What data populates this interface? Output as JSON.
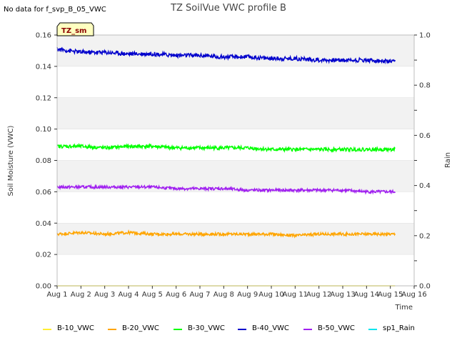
{
  "header": {
    "no_data_note": "No data for f_svp_B_05_VWC",
    "title": "TZ SoilVue VWC profile B"
  },
  "chart_data": {
    "type": "line",
    "title": "TZ SoilVue VWC profile B",
    "xlabel": "Time",
    "ylabel": "Soil Moisture (VWC)",
    "y2label": "Rain",
    "site_badge": "TZ_sm",
    "ylim": [
      0.0,
      0.16
    ],
    "y2lim": [
      0.0,
      1.0
    ],
    "y_ticks": [
      "0.00",
      "0.02",
      "0.04",
      "0.06",
      "0.08",
      "0.10",
      "0.12",
      "0.14",
      "0.16"
    ],
    "y2_ticks": [
      "0.0",
      "0.2",
      "0.4",
      "0.6",
      "0.8",
      "1.0"
    ],
    "x_ticks": [
      "Aug 1",
      "Aug 2",
      "Aug 3",
      "Aug 4",
      "Aug 5",
      "Aug 6",
      "Aug 7",
      "Aug 8",
      "Aug 9",
      "Aug 10",
      "Aug 11",
      "Aug 12",
      "Aug 13",
      "Aug 14",
      "Aug 15",
      "Aug 16"
    ],
    "x_range_days": [
      0,
      15
    ],
    "data_end_day": 14.2,
    "grid": true,
    "legend_position": "bottom",
    "series": [
      {
        "name": "B-10_VWC",
        "color": "#ffee33",
        "values": [
          0.0,
          0.0,
          0.0,
          0.0,
          0.0,
          0.0,
          0.0,
          0.0,
          0.0,
          0.0,
          0.0,
          0.0,
          0.0,
          0.0,
          0.0
        ]
      },
      {
        "name": "B-20_VWC",
        "color": "#ffa500",
        "values": [
          0.033,
          0.034,
          0.033,
          0.034,
          0.033,
          0.033,
          0.033,
          0.033,
          0.033,
          0.033,
          0.032,
          0.033,
          0.033,
          0.033,
          0.033
        ]
      },
      {
        "name": "B-30_VWC",
        "color": "#00ff00",
        "values": [
          0.089,
          0.089,
          0.088,
          0.089,
          0.089,
          0.088,
          0.088,
          0.088,
          0.088,
          0.087,
          0.087,
          0.087,
          0.087,
          0.087,
          0.087
        ]
      },
      {
        "name": "B-40_VWC",
        "color": "#0000cc",
        "values": [
          0.151,
          0.149,
          0.149,
          0.148,
          0.148,
          0.147,
          0.147,
          0.146,
          0.146,
          0.145,
          0.145,
          0.144,
          0.144,
          0.144,
          0.143
        ]
      },
      {
        "name": "B-50_VWC",
        "color": "#a020f0",
        "values": [
          0.063,
          0.063,
          0.063,
          0.063,
          0.063,
          0.062,
          0.062,
          0.062,
          0.061,
          0.061,
          0.061,
          0.061,
          0.061,
          0.06,
          0.06
        ]
      },
      {
        "name": "sp1_Rain",
        "color": "#00e5ee",
        "values": []
      }
    ]
  }
}
